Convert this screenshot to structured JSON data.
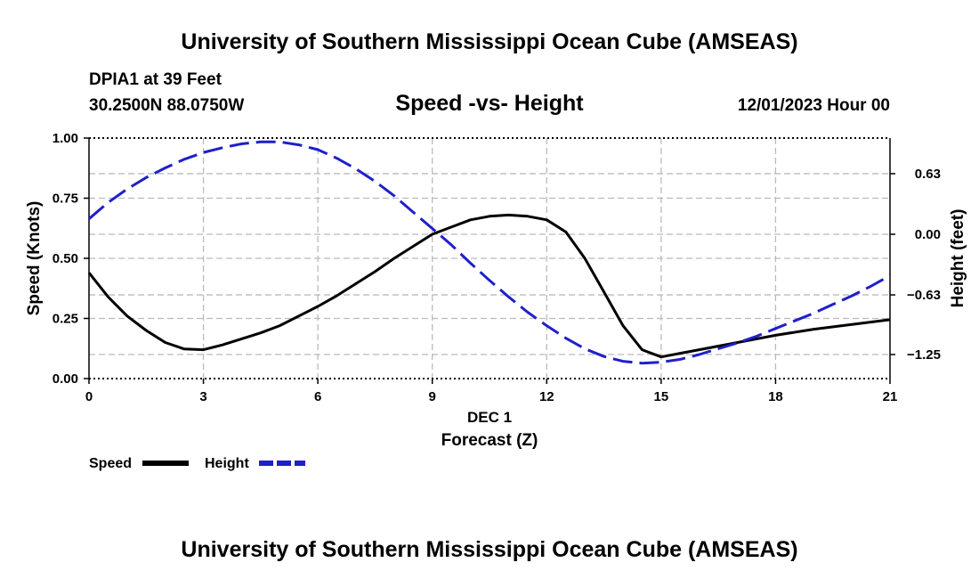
{
  "header": {
    "title": "University of Southern Mississippi Ocean Cube (AMSEAS)",
    "station": "DPIA1 at 39 Feet",
    "coords": "30.2500N  88.0750W",
    "chart_title": "Speed -vs- Height",
    "datetime": "12/01/2023 Hour 00"
  },
  "footer": {
    "title": "University of Southern Mississippi Ocean Cube (AMSEAS)"
  },
  "colors": {
    "speed": "#000000",
    "height": "#1f1fcc",
    "grid": "#bbbbbb"
  },
  "chart_data": {
    "type": "line",
    "title": "Speed -vs- Height",
    "xlabel": "Forecast (Z)",
    "date_label": "DEC 1",
    "ylabel": "Speed (Knots)",
    "y2label": "Height (feet)",
    "xlim": [
      0,
      21
    ],
    "ylim": [
      0,
      1
    ],
    "y2lim": [
      -1.5,
      1.0
    ],
    "x_ticks": [
      "0",
      "3",
      "6",
      "9",
      "12",
      "15",
      "18",
      "21"
    ],
    "x_tick_values": [
      0,
      3,
      6,
      9,
      12,
      15,
      18,
      21
    ],
    "y_ticks": [
      "0.00",
      "0.25",
      "0.50",
      "0.75",
      "1.00"
    ],
    "y_tick_values": [
      0,
      0.25,
      0.5,
      0.75,
      1.0
    ],
    "y2_ticks": [
      "0.63",
      "0.00",
      "−0.63",
      "−1.25"
    ],
    "y2_tick_values": [
      0.63,
      0,
      -0.63,
      -1.25
    ],
    "grid": true,
    "series": [
      {
        "name": "Speed",
        "style": "solid",
        "axis": "left",
        "x": [
          0,
          0.5,
          1,
          1.5,
          2,
          2.5,
          3,
          3.5,
          4,
          4.5,
          5,
          5.5,
          6,
          6.5,
          7,
          7.5,
          8,
          8.5,
          9,
          9.5,
          10,
          10.5,
          11,
          11.5,
          12,
          12.5,
          13,
          13.5,
          14,
          14.5,
          15,
          16,
          17,
          18,
          19,
          20,
          21
        ],
        "values": [
          0.44,
          0.34,
          0.26,
          0.2,
          0.15,
          0.123,
          0.12,
          0.14,
          0.165,
          0.19,
          0.22,
          0.26,
          0.3,
          0.345,
          0.395,
          0.445,
          0.5,
          0.55,
          0.6,
          0.63,
          0.66,
          0.675,
          0.68,
          0.675,
          0.66,
          0.61,
          0.5,
          0.36,
          0.22,
          0.12,
          0.09,
          0.12,
          0.15,
          0.18,
          0.205,
          0.225,
          0.245
        ]
      },
      {
        "name": "Height",
        "style": "dashed",
        "axis": "right",
        "x": [
          0,
          0.5,
          1,
          1.5,
          2,
          2.5,
          3,
          3.5,
          4,
          4.5,
          5,
          5.5,
          6,
          6.5,
          7,
          7.5,
          8,
          8.5,
          9,
          9.5,
          10,
          10.5,
          11,
          11.5,
          12,
          12.5,
          13,
          13.5,
          14,
          14.5,
          15,
          15.5,
          16,
          16.5,
          17,
          17.5,
          18,
          18.5,
          19,
          19.5,
          20,
          20.5,
          21
        ],
        "values": [
          0.16,
          0.33,
          0.47,
          0.59,
          0.69,
          0.78,
          0.85,
          0.9,
          0.94,
          0.96,
          0.96,
          0.93,
          0.88,
          0.79,
          0.68,
          0.55,
          0.4,
          0.23,
          0.06,
          -0.11,
          -0.3,
          -0.48,
          -0.65,
          -0.81,
          -0.95,
          -1.08,
          -1.19,
          -1.27,
          -1.32,
          -1.34,
          -1.33,
          -1.3,
          -1.25,
          -1.19,
          -1.13,
          -1.06,
          -0.98,
          -0.9,
          -0.82,
          -0.73,
          -0.64,
          -0.54,
          -0.43
        ]
      }
    ],
    "legend": [
      "Speed",
      "Height"
    ]
  }
}
